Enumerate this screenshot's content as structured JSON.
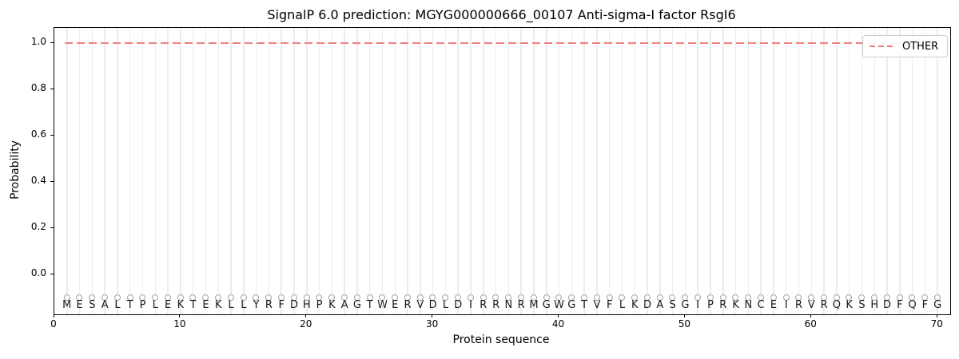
{
  "chart_data": {
    "type": "line",
    "title": "SignalP 6.0 prediction: MGYG000000666_00107 Anti-sigma-I factor RsgI6",
    "xlabel": "Protein sequence",
    "ylabel": "Probability",
    "xlim": [
      0,
      71
    ],
    "ylim": [
      -0.17,
      1.07
    ],
    "xticks": [
      0,
      10,
      20,
      30,
      40,
      50,
      60,
      70
    ],
    "yticks": [
      0.0,
      0.2,
      0.4,
      0.6,
      0.8,
      1.0
    ],
    "grid": "vertical gridline at each residue position",
    "legend_position": "upper-right",
    "series": [
      {
        "name": "OTHER",
        "style": "dashed",
        "color": "#f08080",
        "x_start": 1,
        "x_step": 1,
        "values": [
          1,
          1,
          1,
          1,
          1,
          1,
          1,
          1,
          1,
          1,
          1,
          1,
          1,
          1,
          1,
          1,
          1,
          1,
          1,
          1,
          1,
          1,
          1,
          1,
          1,
          1,
          1,
          1,
          1,
          1,
          1,
          1,
          1,
          1,
          1,
          1,
          1,
          1,
          1,
          1,
          1,
          1,
          1,
          1,
          1,
          1,
          1,
          1,
          1,
          1,
          1,
          1,
          1,
          1,
          1,
          1,
          1,
          1,
          1,
          1,
          1,
          1,
          1,
          1,
          1,
          1,
          1,
          1,
          1,
          1
        ]
      }
    ],
    "sequence_markers": {
      "residues": "MESALTPLEKTEKLLYRFDHPKAGTWERVDLDIRRNRMGWGTVFLKDASGIPRKNCEIRVRQKSHDFQFG",
      "marker": "open-circle",
      "marker_color": "#a3a3a3",
      "marker_y": -0.05,
      "letter_y": -0.1
    }
  },
  "colors": {
    "other_line": "#f08080",
    "grid": "#ececec",
    "spine": "#000000"
  }
}
